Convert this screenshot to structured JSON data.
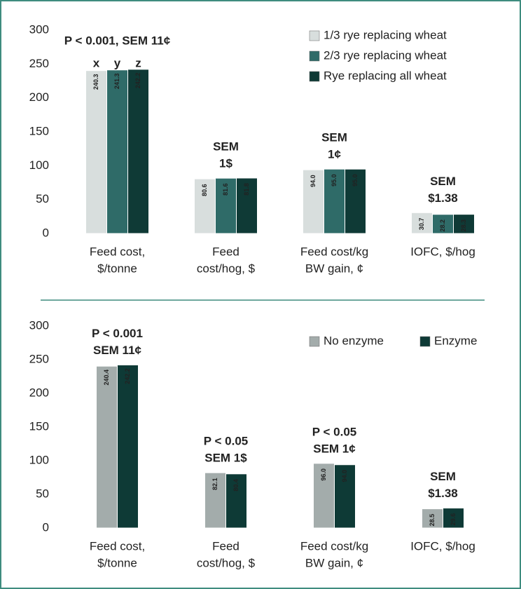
{
  "chart_data": [
    {
      "type": "bar",
      "categories": [
        [
          "Feed cost,",
          "$/tonne"
        ],
        [
          "Feed",
          "cost/hog, $"
        ],
        [
          "Feed cost/kg",
          "BW gain, ¢"
        ],
        [
          "IOFC, $/hog"
        ]
      ],
      "series": [
        {
          "name": "1/3 rye replacing wheat",
          "color": "#d8dedd",
          "values": [
            240.3,
            80.6,
            94.0,
            30.7
          ],
          "value_labels": [
            "240.3",
            "80.6",
            "94.0",
            "30.7"
          ]
        },
        {
          "name": "2/3 rye replacing wheat",
          "color": "#2f6b68",
          "values": [
            241.3,
            81.6,
            95.0,
            28.2
          ],
          "value_labels": [
            "241.3",
            "81.6",
            "95.0",
            "28.2"
          ]
        },
        {
          "name": "Rye replacing all wheat",
          "color": "#0f3a36",
          "values": [
            242.2,
            81.8,
            95.0,
            28.3
          ],
          "value_labels": [
            "242.2",
            "81.8",
            "95.0",
            "28.3"
          ]
        }
      ],
      "letters": [
        "x",
        "y",
        "z"
      ],
      "annotations": [
        [
          "P < 0.001, SEM 11¢"
        ],
        [
          "SEM",
          "1$"
        ],
        [
          "SEM",
          "1¢"
        ],
        [
          "SEM",
          "$1.38"
        ]
      ],
      "ylim": [
        0,
        300
      ],
      "yticks": [
        0,
        50,
        100,
        150,
        200,
        250,
        300
      ],
      "grid": false,
      "legend": "upper right"
    },
    {
      "type": "bar",
      "categories": [
        [
          "Feed cost,",
          "$/tonne"
        ],
        [
          "Feed",
          "cost/hog, $"
        ],
        [
          "Feed cost/kg",
          "BW gain, ¢"
        ],
        [
          "IOFC, $/hog"
        ]
      ],
      "series": [
        {
          "name": "No enzyme",
          "color": "#a3acab",
          "values": [
            240.4,
            82.1,
            96.0,
            28.5
          ],
          "value_labels": [
            "240.4",
            "82.1",
            "96.0",
            "28.5"
          ]
        },
        {
          "name": "Enzyme",
          "color": "#0e3a36",
          "values": [
            242.2,
            80.4,
            94.0,
            29.6
          ],
          "value_labels": [
            "242.2",
            "80.4",
            "94.0",
            "29.6"
          ]
        }
      ],
      "annotations": [
        [
          "P < 0.001",
          "SEM 11¢"
        ],
        [
          "P < 0.05",
          "SEM 1$"
        ],
        [
          "P < 0.05",
          "SEM 1¢"
        ],
        [
          "SEM",
          "$1.38"
        ]
      ],
      "ylim": [
        0,
        300
      ],
      "yticks": [
        0,
        50,
        100,
        150,
        200,
        250,
        300
      ],
      "grid": false,
      "legend": "upper right"
    }
  ]
}
